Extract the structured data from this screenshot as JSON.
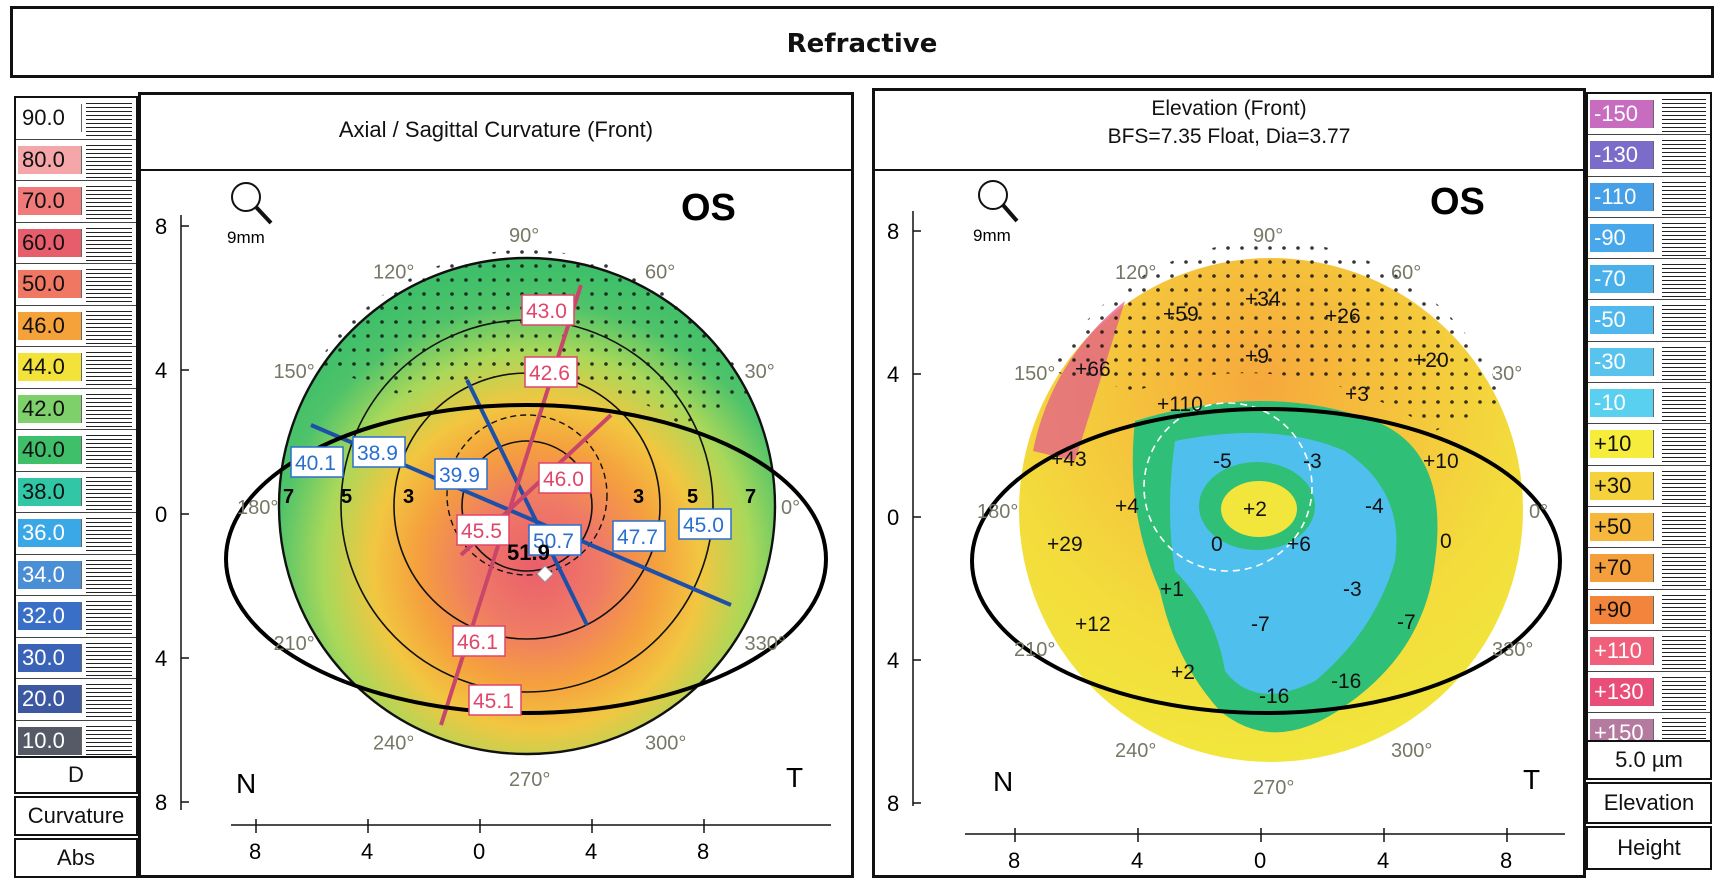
{
  "title": "Refractive",
  "left_scale": {
    "steps": [
      "90.0",
      "80.0",
      "70.0",
      "60.0",
      "50.0",
      "46.0",
      "44.0",
      "42.0",
      "40.0",
      "38.0",
      "36.0",
      "34.0",
      "32.0",
      "30.0",
      "20.0",
      "10.0"
    ],
    "colors": [
      "#ffffff",
      "#f4a6a9",
      "#f07a7a",
      "#e85d6b",
      "#f07863",
      "#f5a23a",
      "#f2e23a",
      "#7dd06a",
      "#3fbf6a",
      "#30c6a6",
      "#3aa8e6",
      "#4a8fd6",
      "#3a6fc8",
      "#3a63b8",
      "#3b58a0",
      "#555a66"
    ],
    "unit": "D",
    "type": "Curvature",
    "mode": "Abs"
  },
  "right_scale": {
    "steps": [
      "-150",
      "-130",
      "-110",
      "-90",
      "-70",
      "-50",
      "-30",
      "-10",
      "+10",
      "+30",
      "+50",
      "+70",
      "+90",
      "+110",
      "+130",
      "+150"
    ],
    "colors": [
      "#c86cc0",
      "#7a6cc8",
      "#46a0e8",
      "#46a8ea",
      "#4ab0ea",
      "#50b8ec",
      "#58c4ee",
      "#5ad0f0",
      "#f5ec3c",
      "#f5d23c",
      "#f5b83c",
      "#f59e3c",
      "#f2843c",
      "#f0607a",
      "#e84e78",
      "#b47aa0"
    ],
    "unit": "5.0 µm",
    "type": "Elevation",
    "mode": "Height"
  },
  "left_map": {
    "title": "Axial / Sagittal Curvature (Front)",
    "eye": "OS",
    "zoom": "9mm",
    "y_ticks": [
      "8",
      "4",
      "0",
      "4",
      "8"
    ],
    "x_ticks": [
      "8",
      "4",
      "0",
      "4",
      "8"
    ],
    "nasal": "N",
    "temporal": "T",
    "angles": [
      "90°",
      "60°",
      "30°",
      "0°",
      "330°",
      "300°",
      "270°",
      "240°",
      "210°",
      "180°",
      "150°",
      "120°"
    ],
    "ring_labels": [
      "7",
      "5",
      "3",
      "3",
      "5",
      "7"
    ],
    "readings_red": [
      "43.0",
      "42.6",
      "46.0",
      "45.5",
      "46.1",
      "45.1"
    ],
    "readings_blue": [
      "40.1",
      "38.9",
      "39.9",
      "50.7",
      "47.7",
      "45.0"
    ],
    "center": "51.9"
  },
  "right_map": {
    "title": "Elevation (Front)",
    "subtitle": "BFS=7.35 Float, Dia=3.77",
    "eye": "OS",
    "zoom": "9mm",
    "y_ticks": [
      "8",
      "4",
      "0",
      "4",
      "8"
    ],
    "x_ticks": [
      "8",
      "4",
      "0",
      "4",
      "8"
    ],
    "nasal": "N",
    "temporal": "T",
    "angles": [
      "90°",
      "60°",
      "30°",
      "0°",
      "330°",
      "300°",
      "270°",
      "240°",
      "210°",
      "180°",
      "150°",
      "120°"
    ],
    "values": [
      "+34",
      "+59",
      "+26",
      "+66",
      "+9",
      "+20",
      "+110",
      "+3",
      "+43",
      "-5",
      "-3",
      "+10",
      "+4",
      "+2",
      "-4",
      "+29",
      "0",
      "+6",
      "0",
      "+1",
      "-3",
      "+12",
      "-7",
      "-7",
      "+2",
      "-16",
      "-16"
    ]
  }
}
